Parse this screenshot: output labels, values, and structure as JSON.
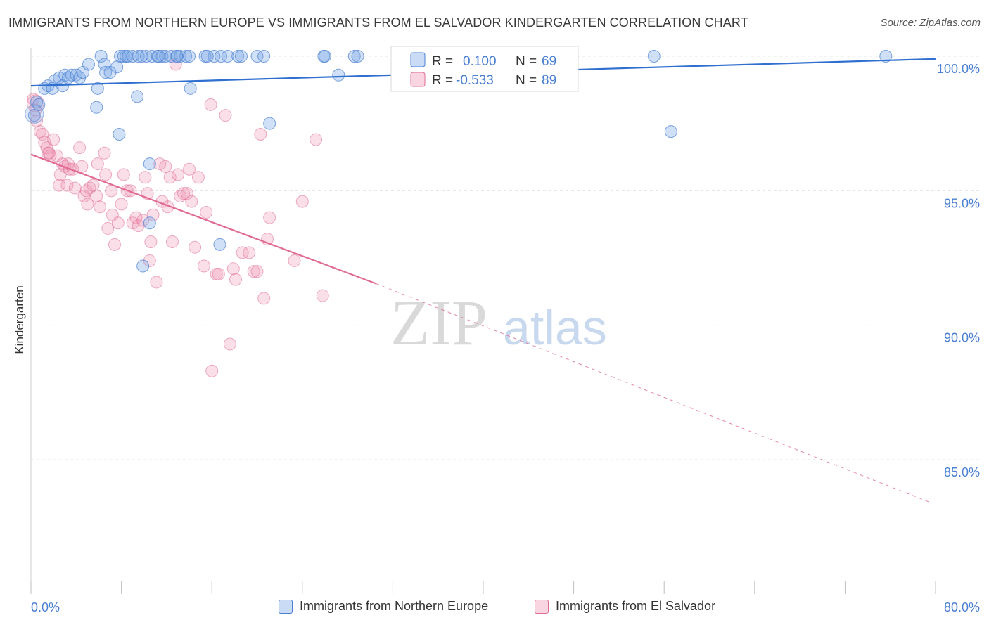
{
  "header": {
    "title": "IMMIGRANTS FROM NORTHERN EUROPE VS IMMIGRANTS FROM EL SALVADOR KINDERGARTEN CORRELATION CHART",
    "source": "Source: ZipAtlas.com"
  },
  "watermark": {
    "zip": "ZIP",
    "atlas": "atlas"
  },
  "colors": {
    "blue": "#4a7fd1",
    "blue_fill": "rgba(120,165,230,0.35)",
    "blue_line": "#2f6fcf",
    "pink": "#e06b95",
    "pink_fill": "rgba(240,150,180,0.30)",
    "grid": "#e4e4e4",
    "label": "#4a7fd1"
  },
  "legend": {
    "rows": [
      {
        "r_label": "R =",
        "r_value": "0.100",
        "n_label": "N =",
        "n_value": "69"
      },
      {
        "r_label": "R =",
        "r_value": "-0.533",
        "n_label": "N =",
        "n_value": "89"
      }
    ]
  },
  "bottom_legend": {
    "items": [
      {
        "label": "Immigrants from Northern Europe"
      },
      {
        "label": "Immigrants from El Salvador"
      }
    ]
  },
  "chart_data": {
    "type": "scatter",
    "title": "IMMIGRANTS FROM NORTHERN EUROPE VS IMMIGRANTS FROM EL SALVADOR KINDERGARTEN CORRELATION CHART",
    "xlabel": "",
    "ylabel": "Kindergarten",
    "xlim": [
      0,
      80
    ],
    "ylim": [
      80.5,
      100.8
    ],
    "x_tick_labels": [
      "0.0%",
      "80.0%"
    ],
    "y_ticks": [
      100,
      95,
      90,
      85
    ],
    "y_tick_labels": [
      "100.0%",
      "95.0%",
      "90.0%",
      "85.0%"
    ],
    "grid": true,
    "legend_position": "top-center",
    "series": [
      {
        "name": "Immigrants from Northern Europe",
        "color": "#4a7fd1",
        "r": 0.1,
        "n": 69,
        "trend": {
          "x": [
            0,
            80
          ],
          "y": [
            98.9,
            99.9
          ]
        },
        "points": [
          [
            0.3,
            97.8
          ],
          [
            0.5,
            98.3
          ],
          [
            0.7,
            98.2
          ],
          [
            1.2,
            98.8
          ],
          [
            1.5,
            98.9
          ],
          [
            1.9,
            98.8
          ],
          [
            2.1,
            99.1
          ],
          [
            2.5,
            99.2
          ],
          [
            2.8,
            98.9
          ],
          [
            3.0,
            99.3
          ],
          [
            3.3,
            99.2
          ],
          [
            3.6,
            99.3
          ],
          [
            4.0,
            99.3
          ],
          [
            4.3,
            99.2
          ],
          [
            4.6,
            99.4
          ],
          [
            5.1,
            99.7
          ],
          [
            5.8,
            98.1
          ],
          [
            5.9,
            98.8
          ],
          [
            6.2,
            100.0
          ],
          [
            6.5,
            99.7
          ],
          [
            6.6,
            99.4
          ],
          [
            7.0,
            99.4
          ],
          [
            7.6,
            99.6
          ],
          [
            7.8,
            97.1
          ],
          [
            7.9,
            100.0
          ],
          [
            8.2,
            100.0
          ],
          [
            8.4,
            100.0
          ],
          [
            8.6,
            100.0
          ],
          [
            9.0,
            100.0
          ],
          [
            9.4,
            98.5
          ],
          [
            9.5,
            100.0
          ],
          [
            9.8,
            100.0
          ],
          [
            10.2,
            100.0
          ],
          [
            10.5,
            96.0
          ],
          [
            10.7,
            100.0
          ],
          [
            11.2,
            100.0
          ],
          [
            11.6,
            100.0
          ],
          [
            11.9,
            100.0
          ],
          [
            12.4,
            100.0
          ],
          [
            12.9,
            100.0
          ],
          [
            13.2,
            100.0
          ],
          [
            13.7,
            100.0
          ],
          [
            14.0,
            100.0
          ],
          [
            14.1,
            98.8
          ],
          [
            15.4,
            100.0
          ],
          [
            16.2,
            100.0
          ],
          [
            16.8,
            100.0
          ],
          [
            17.4,
            100.0
          ],
          [
            18.3,
            100.0
          ],
          [
            18.6,
            100.0
          ],
          [
            20.0,
            100.0
          ],
          [
            20.6,
            100.0
          ],
          [
            21.1,
            97.5
          ],
          [
            25.9,
            100.0
          ],
          [
            26.0,
            100.0
          ],
          [
            27.2,
            99.3
          ],
          [
            28.6,
            100.0
          ],
          [
            28.9,
            100.0
          ],
          [
            32.9,
            100.0
          ],
          [
            33.1,
            100.0
          ],
          [
            55.1,
            100.0
          ],
          [
            56.6,
            97.2
          ],
          [
            75.6,
            100.0
          ],
          [
            10.5,
            93.8
          ],
          [
            9.9,
            92.2
          ],
          [
            16.7,
            93.0
          ],
          [
            12.9,
            100.0
          ],
          [
            15.6,
            100.0
          ],
          [
            11.3,
            100.0
          ]
        ]
      },
      {
        "name": "Immigrants from El Salvador",
        "color": "#e06b95",
        "r": -0.533,
        "n": 89,
        "trend": {
          "x": [
            0,
            30.5
          ],
          "y": [
            96.35,
            91.55
          ]
        },
        "trend_extension": {
          "x": [
            30.5,
            79.6
          ],
          "y": [
            91.55,
            83.4
          ]
        },
        "points": [
          [
            0.2,
            98.4
          ],
          [
            0.4,
            98.0
          ],
          [
            0.5,
            97.6
          ],
          [
            0.8,
            97.2
          ],
          [
            1.0,
            97.1
          ],
          [
            1.2,
            96.8
          ],
          [
            1.4,
            96.6
          ],
          [
            1.5,
            96.4
          ],
          [
            1.7,
            96.3
          ],
          [
            2.0,
            96.9
          ],
          [
            2.3,
            96.3
          ],
          [
            2.6,
            95.6
          ],
          [
            2.8,
            96.0
          ],
          [
            3.0,
            95.9
          ],
          [
            3.2,
            95.2
          ],
          [
            3.4,
            95.8
          ],
          [
            3.7,
            95.8
          ],
          [
            3.9,
            95.1
          ],
          [
            4.3,
            96.6
          ],
          [
            4.5,
            95.9
          ],
          [
            4.7,
            94.8
          ],
          [
            4.9,
            95.0
          ],
          [
            5.0,
            94.5
          ],
          [
            5.2,
            95.1
          ],
          [
            5.5,
            95.2
          ],
          [
            5.8,
            94.8
          ],
          [
            5.9,
            96.0
          ],
          [
            6.1,
            94.4
          ],
          [
            6.5,
            96.4
          ],
          [
            6.6,
            95.6
          ],
          [
            6.8,
            93.6
          ],
          [
            7.1,
            95.0
          ],
          [
            7.2,
            94.1
          ],
          [
            7.4,
            93.0
          ],
          [
            7.7,
            93.8
          ],
          [
            8.0,
            94.5
          ],
          [
            8.2,
            95.6
          ],
          [
            8.5,
            95.0
          ],
          [
            8.8,
            95.0
          ],
          [
            9.0,
            93.8
          ],
          [
            9.3,
            94.0
          ],
          [
            9.5,
            93.7
          ],
          [
            9.9,
            93.9
          ],
          [
            10.1,
            95.5
          ],
          [
            10.3,
            94.9
          ],
          [
            10.5,
            92.4
          ],
          [
            10.6,
            93.1
          ],
          [
            10.8,
            94.1
          ],
          [
            11.1,
            91.6
          ],
          [
            11.4,
            96.0
          ],
          [
            11.6,
            94.6
          ],
          [
            11.9,
            95.9
          ],
          [
            12.1,
            94.4
          ],
          [
            12.3,
            95.5
          ],
          [
            12.5,
            93.1
          ],
          [
            12.8,
            99.7
          ],
          [
            13.0,
            95.6
          ],
          [
            13.2,
            94.8
          ],
          [
            13.5,
            94.9
          ],
          [
            13.8,
            94.9
          ],
          [
            14.0,
            95.8
          ],
          [
            14.2,
            94.6
          ],
          [
            14.5,
            92.9
          ],
          [
            14.8,
            95.5
          ],
          [
            15.3,
            92.2
          ],
          [
            15.5,
            94.2
          ],
          [
            15.9,
            98.2
          ],
          [
            16.4,
            91.9
          ],
          [
            16.6,
            91.9
          ],
          [
            17.2,
            97.8
          ],
          [
            17.6,
            89.3
          ],
          [
            17.9,
            92.1
          ],
          [
            18.1,
            91.7
          ],
          [
            18.7,
            92.7
          ],
          [
            19.3,
            92.7
          ],
          [
            19.7,
            92.0
          ],
          [
            20.0,
            92.0
          ],
          [
            20.3,
            97.1
          ],
          [
            20.6,
            91.0
          ],
          [
            20.9,
            93.2
          ],
          [
            21.1,
            94.0
          ],
          [
            23.3,
            92.4
          ],
          [
            24.0,
            94.6
          ],
          [
            25.2,
            96.9
          ],
          [
            25.8,
            91.1
          ],
          [
            16.0,
            88.3
          ],
          [
            3.3,
            96.0
          ],
          [
            1.6,
            96.4
          ],
          [
            2.5,
            95.2
          ]
        ]
      }
    ]
  }
}
